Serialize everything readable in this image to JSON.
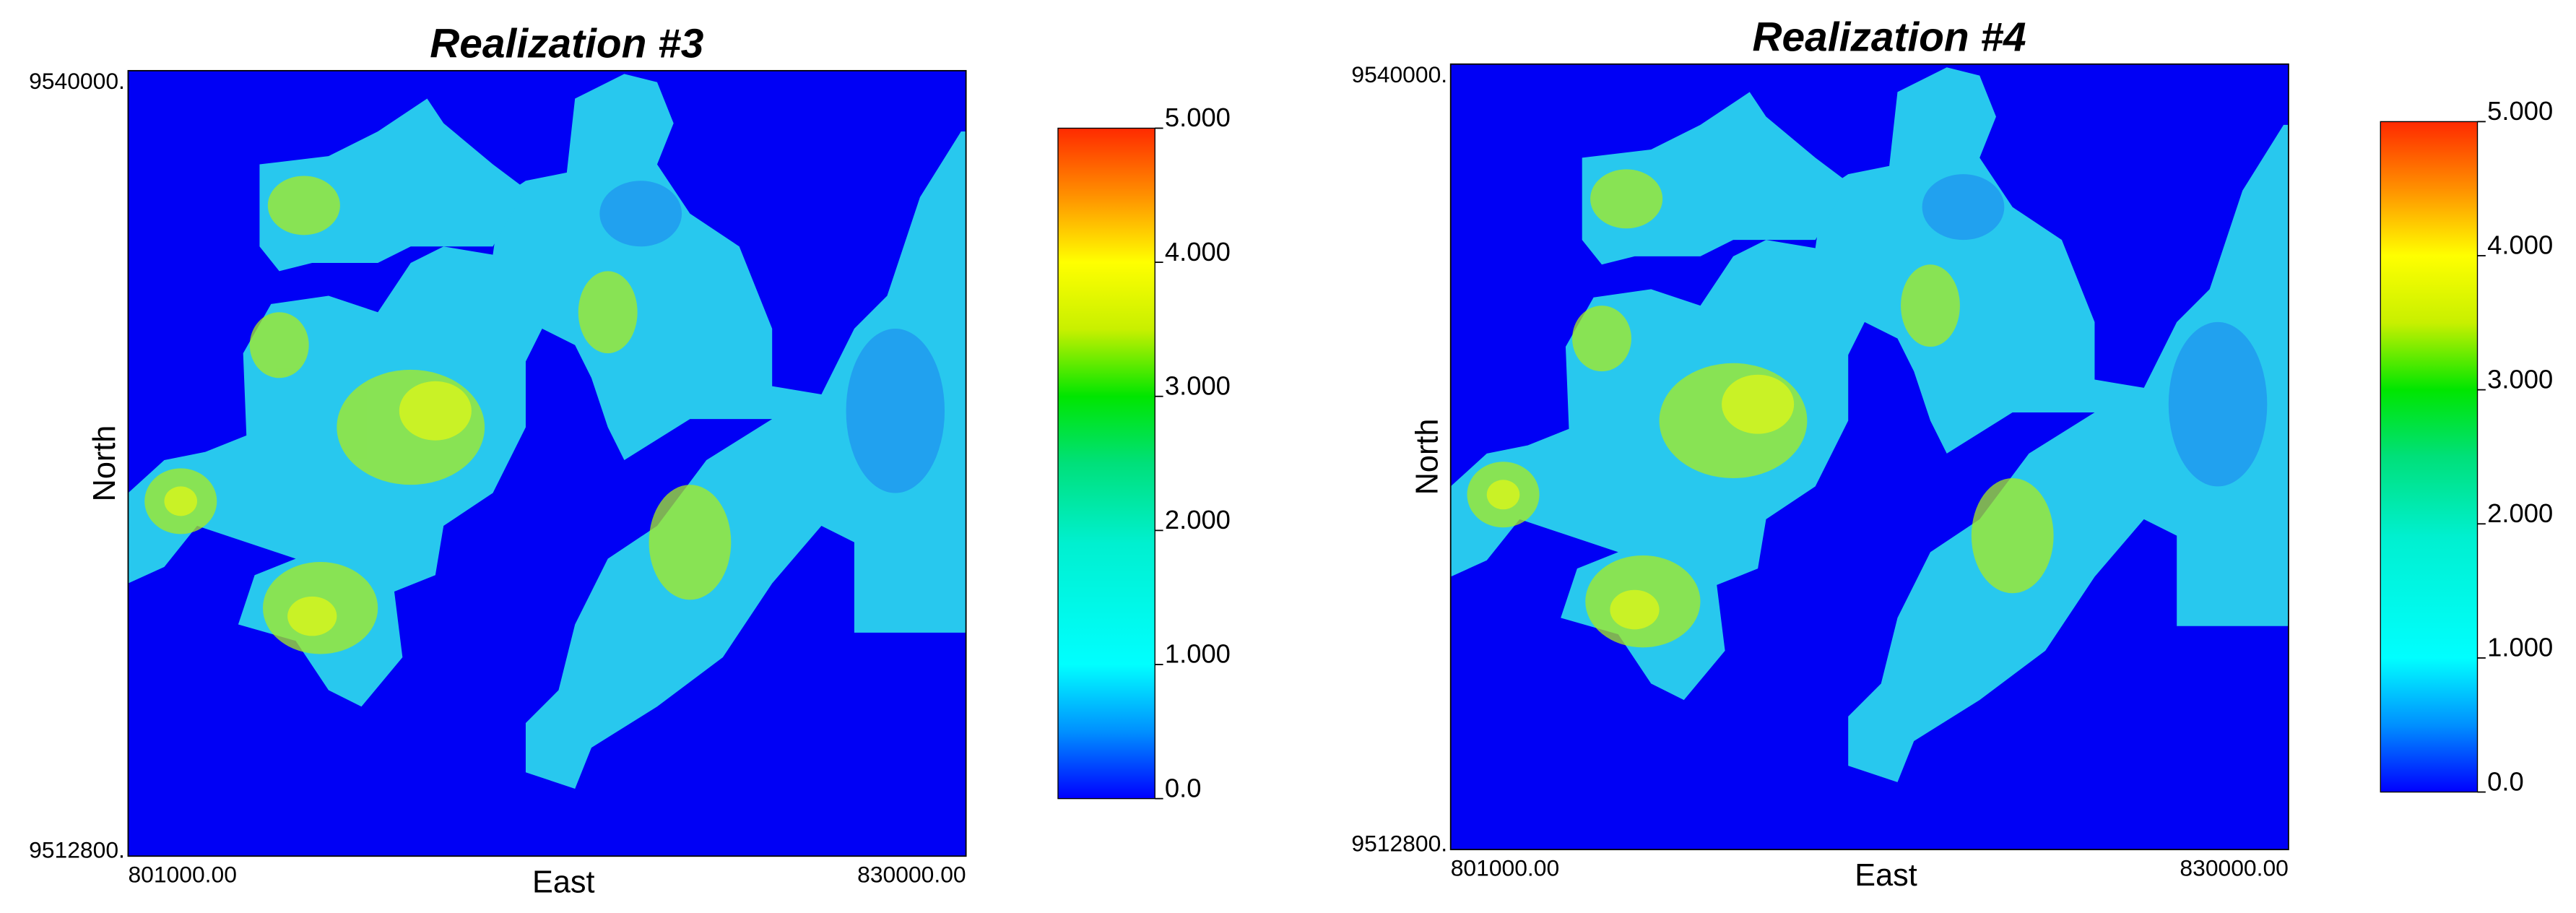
{
  "panels": [
    {
      "title": "Realization #3",
      "x_label": "East",
      "y_label": "North",
      "x_tick_labels": [
        "801000.00",
        "830000.00"
      ],
      "y_tick_labels": [
        "9540000.",
        "9512800."
      ],
      "colorbar": {
        "lim": [
          0,
          5
        ],
        "ticks": [
          {
            "value": 0,
            "label": "0.0"
          },
          {
            "value": 1,
            "label": "1.000"
          },
          {
            "value": 2,
            "label": "2.000"
          },
          {
            "value": 3,
            "label": "3.000"
          },
          {
            "value": 4,
            "label": "4.000"
          },
          {
            "value": 5,
            "label": "5.000"
          }
        ]
      }
    },
    {
      "title": "Realization #4",
      "x_label": "East",
      "y_label": "North",
      "x_tick_labels": [
        "801000.00",
        "830000.00"
      ],
      "y_tick_labels": [
        "9540000.",
        "9512800."
      ],
      "colorbar": {
        "lim": [
          0,
          5
        ],
        "ticks": [
          {
            "value": 0,
            "label": "0.0"
          },
          {
            "value": 1,
            "label": "1.000"
          },
          {
            "value": 2,
            "label": "2.000"
          },
          {
            "value": 3,
            "label": "3.000"
          },
          {
            "value": 4,
            "label": "4.000"
          },
          {
            "value": 5,
            "label": "5.000"
          }
        ]
      }
    }
  ]
}
